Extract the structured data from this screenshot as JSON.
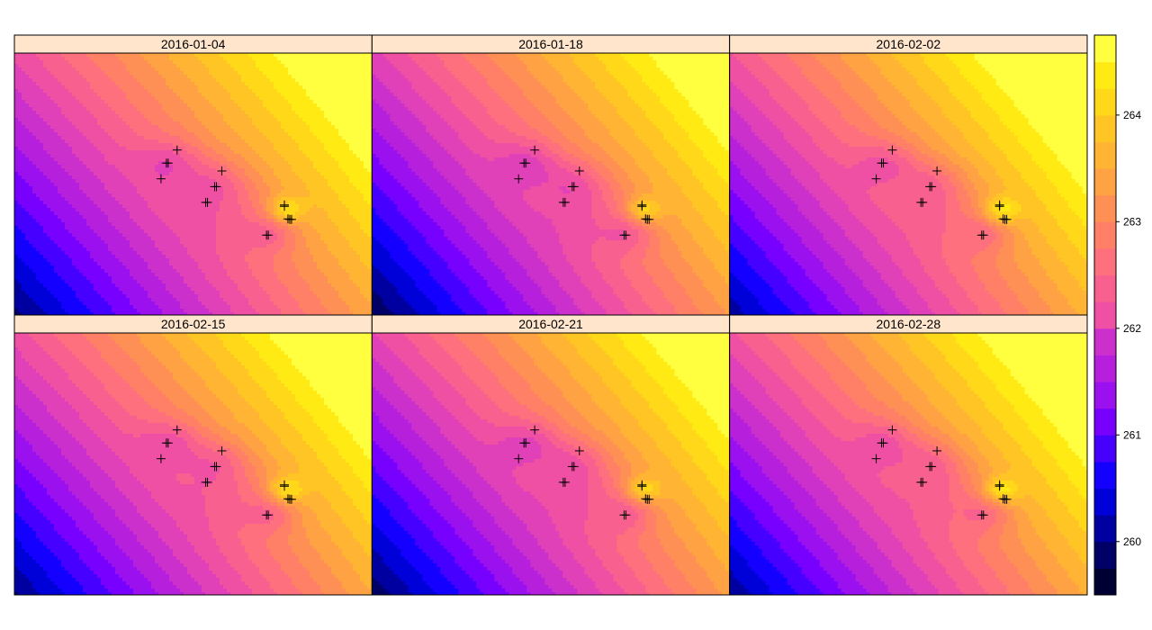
{
  "chart_data": {
    "type": "heatmap",
    "title": "",
    "panels": [
      {
        "label": "2016-01-04",
        "shift": 0.0
      },
      {
        "label": "2016-01-18",
        "shift": -0.15
      },
      {
        "label": "2016-02-02",
        "shift": 0.15
      },
      {
        "label": "2016-02-15",
        "shift": 0.05
      },
      {
        "label": "2016-02-21",
        "shift": -0.1
      },
      {
        "label": "2016-02-28",
        "shift": 0.1
      }
    ],
    "colorbar": {
      "range": [
        259.5,
        264.75
      ],
      "step": 0.25,
      "ticks": [
        260,
        261,
        262,
        263,
        264
      ],
      "palette": [
        "#000033",
        "#000066",
        "#0000a0",
        "#0000d8",
        "#1400ff",
        "#4600ff",
        "#7700ff",
        "#9a10ef",
        "#b620dd",
        "#cc30cc",
        "#e040b8",
        "#ef50a4",
        "#f86090",
        "#ff707e",
        "#ff8066",
        "#ff9055",
        "#ffa244",
        "#ffb433",
        "#ffc525",
        "#ffd81a",
        "#ffea14",
        "#ffff40"
      ]
    },
    "points": [
      {
        "x": 0.455,
        "y": 0.37
      },
      {
        "x": 0.43,
        "y": 0.42
      },
      {
        "x": 0.425,
        "y": 0.42
      },
      {
        "x": 0.41,
        "y": 0.48
      },
      {
        "x": 0.58,
        "y": 0.45
      },
      {
        "x": 0.565,
        "y": 0.51
      },
      {
        "x": 0.56,
        "y": 0.51
      },
      {
        "x": 0.54,
        "y": 0.57
      },
      {
        "x": 0.535,
        "y": 0.57
      },
      {
        "x": 0.755,
        "y": 0.58
      },
      {
        "x": 0.755,
        "y": 0.585
      },
      {
        "x": 0.775,
        "y": 0.635
      },
      {
        "x": 0.77,
        "y": 0.635
      },
      {
        "x": 0.765,
        "y": 0.633
      },
      {
        "x": 0.71,
        "y": 0.695
      },
      {
        "x": 0.705,
        "y": 0.695
      }
    ]
  }
}
